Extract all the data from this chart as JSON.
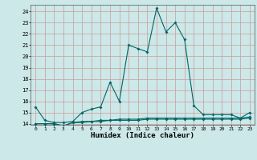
{
  "x": [
    0,
    1,
    2,
    3,
    4,
    5,
    6,
    7,
    8,
    9,
    10,
    11,
    12,
    13,
    14,
    15,
    16,
    17,
    18,
    19,
    20,
    21,
    22,
    23
  ],
  "series1": [
    15.5,
    14.3,
    14.1,
    14.1,
    14.2,
    15.0,
    15.3,
    15.5,
    17.7,
    16.0,
    21.0,
    20.7,
    20.4,
    24.3,
    22.2,
    23.0,
    21.5,
    15.6,
    14.8,
    14.8,
    14.8,
    14.8,
    14.5,
    15.0
  ],
  "series2": [
    14.0,
    14.0,
    14.0,
    13.8,
    14.1,
    14.1,
    14.2,
    14.2,
    14.3,
    14.3,
    14.3,
    14.3,
    14.4,
    14.4,
    14.4,
    14.4,
    14.4,
    14.4,
    14.4,
    14.4,
    14.4,
    14.4,
    14.4,
    14.5
  ],
  "series3": [
    14.0,
    14.0,
    14.0,
    13.8,
    14.1,
    14.2,
    14.2,
    14.3,
    14.3,
    14.4,
    14.4,
    14.4,
    14.5,
    14.5,
    14.5,
    14.5,
    14.5,
    14.5,
    14.5,
    14.5,
    14.5,
    14.5,
    14.5,
    14.6
  ],
  "color": "#006666",
  "bg_color": "#cce8e8",
  "grid_major_color": "#cc9999",
  "xlabel": "Humidex (Indice chaleur)",
  "ylim": [
    13.9,
    24.6
  ],
  "xlim": [
    -0.5,
    23.5
  ],
  "yticks": [
    14,
    15,
    16,
    17,
    18,
    19,
    20,
    21,
    22,
    23,
    24
  ],
  "xticks": [
    0,
    1,
    2,
    3,
    4,
    5,
    6,
    7,
    8,
    9,
    10,
    11,
    12,
    13,
    14,
    15,
    16,
    17,
    18,
    19,
    20,
    21,
    22,
    23
  ]
}
